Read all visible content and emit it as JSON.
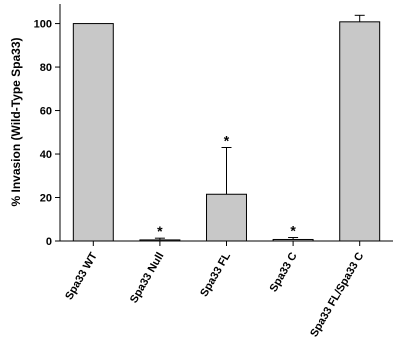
{
  "chart_data": {
    "type": "bar",
    "y_label": "% Invasion (Wild-Type Spa33)",
    "categories": [
      "Spa33 WT",
      "Spa33 Null",
      "Spa33 FL",
      "Spa33 C",
      "Spa33 FL/Spa33 C"
    ],
    "values": [
      100,
      0.5,
      21.5,
      0.7,
      100.8
    ],
    "errors": [
      0,
      0.8,
      21.5,
      0.9,
      3
    ],
    "annotations": [
      null,
      "*",
      "*",
      "*",
      null
    ],
    "color": "#c8c8c8",
    "ylim": [
      0,
      109
    ],
    "yticks": [
      0,
      20,
      40,
      60,
      80,
      100
    ],
    "grid": false
  }
}
